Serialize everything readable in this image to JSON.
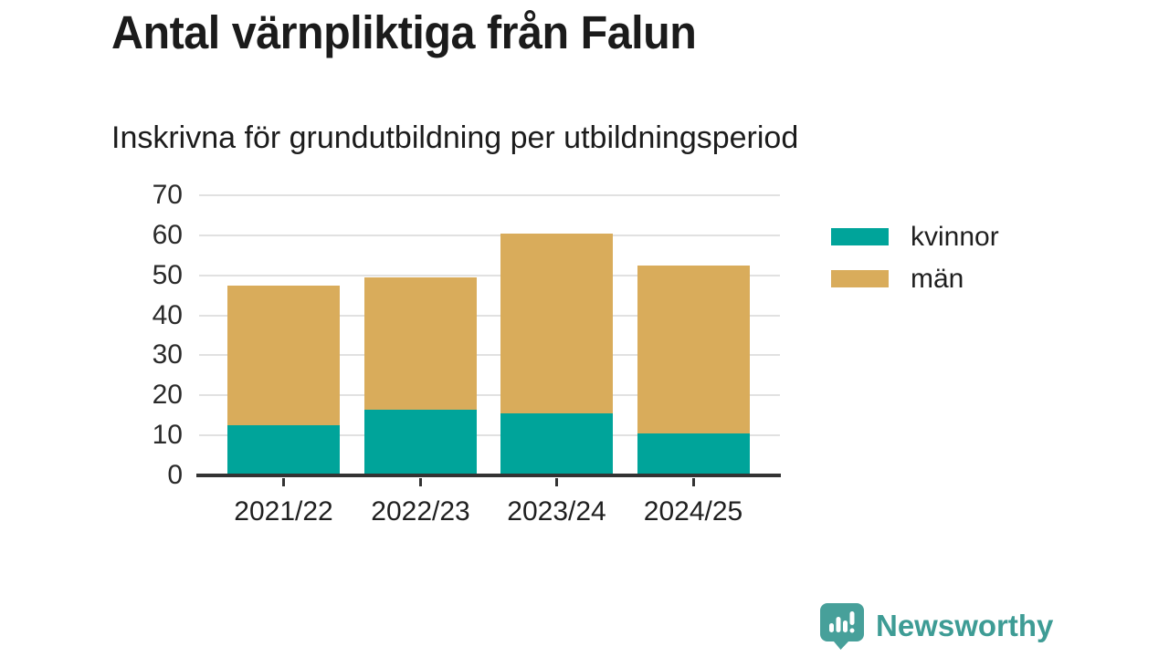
{
  "header": {
    "title": "Antal värnpliktiga från Falun",
    "subtitle": "Inskrivna för grundutbildning per utbildningsperiod"
  },
  "chart_data": {
    "type": "bar",
    "stacked": true,
    "title": "Antal värnpliktiga från Falun",
    "subtitle": "Inskrivna för grundutbildning per utbildningsperiod",
    "categories": [
      "2021/22",
      "2022/23",
      "2023/24",
      "2024/25"
    ],
    "series": [
      {
        "name": "kvinnor",
        "color": "#00a49a",
        "values": [
          12,
          16,
          15,
          10
        ]
      },
      {
        "name": "män",
        "color": "#d9ac5b",
        "values": [
          35,
          33,
          45,
          42
        ]
      }
    ],
    "stack_totals": [
      47,
      49,
      60,
      52
    ],
    "ylabel": "",
    "xlabel": "",
    "ylim": [
      0,
      70
    ],
    "y_ticks": [
      0,
      10,
      20,
      30,
      40,
      50,
      60,
      70
    ],
    "grid": "horizontal",
    "legend_position": "right"
  },
  "legend": {
    "items": [
      {
        "label": "kvinnor",
        "color": "#00a49a"
      },
      {
        "label": "män",
        "color": "#d9ac5b"
      }
    ]
  },
  "branding": {
    "name": "Newsworthy",
    "icon": "newsworthy-chart-bubble-icon",
    "color": "#3e9c95"
  },
  "colors": {
    "background": "#ffffff",
    "gridline": "#e1e1e1",
    "axis": "#333333",
    "text": "#1b1b1b"
  }
}
